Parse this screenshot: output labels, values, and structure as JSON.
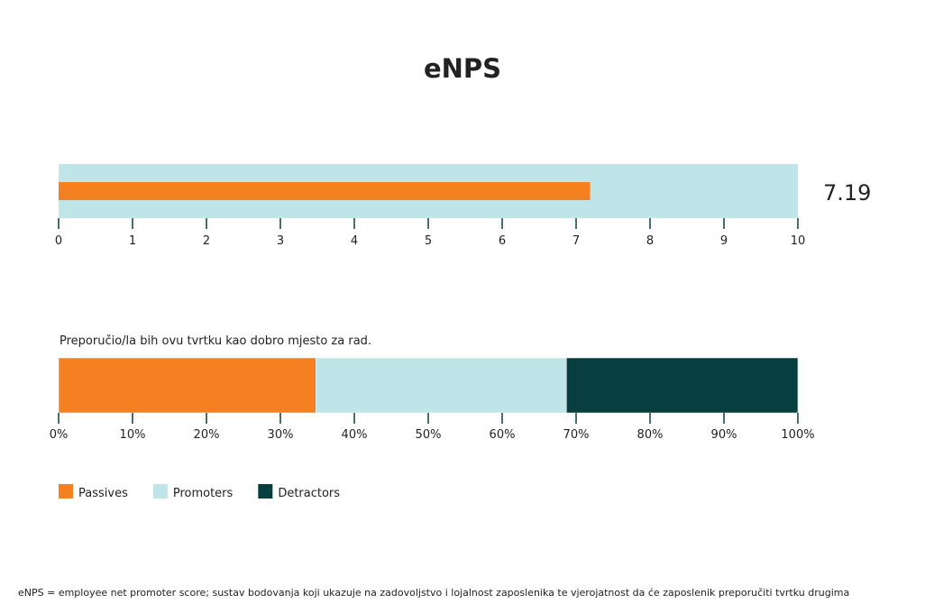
{
  "chart_data": [
    {
      "type": "bar",
      "title": "eNPS",
      "value": 7.19,
      "value_label": "7.19",
      "xlim": [
        0,
        10
      ],
      "ticks": [
        "0",
        "1",
        "2",
        "3",
        "4",
        "5",
        "6",
        "7",
        "8",
        "9",
        "10"
      ],
      "colors": {
        "background": "#c0e5e8",
        "bar": "#f58020",
        "axis": "#0a3d3d"
      }
    },
    {
      "type": "bar",
      "stacked": true,
      "question": "Preporučio/la bih ovu tvrtku kao dobro mjesto za rad.",
      "xlim": [
        0,
        100
      ],
      "ticks": [
        "0%",
        "10%",
        "20%",
        "30%",
        "40%",
        "50%",
        "60%",
        "70%",
        "80%",
        "90%",
        "100%"
      ],
      "series": [
        {
          "name": "Passives",
          "values": [
            34.8
          ],
          "color": "#f58020"
        },
        {
          "name": "Promoters",
          "values": [
            33.9
          ],
          "color": "#c0e5e8"
        },
        {
          "name": "Detractors",
          "values": [
            31.3
          ],
          "color": "#073e3f"
        }
      ],
      "legend": "bottom-left"
    }
  ],
  "footnote": "eNPS = employee net promoter score; sustav bodovanja koji ukazuje na zadovoljstvo i lojalnost zaposlenika te vjerojatnost da će zaposlenik preporučiti tvrtku drugima"
}
